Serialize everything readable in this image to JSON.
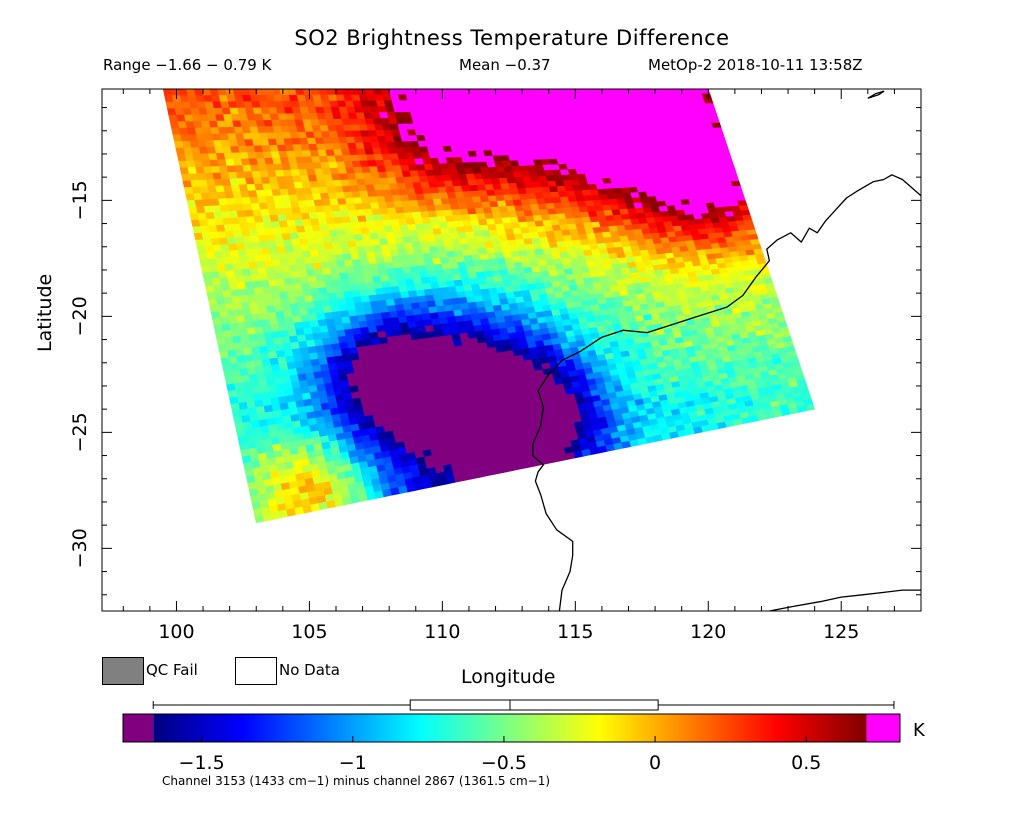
{
  "title": "SO2 Brightness Temperature Difference",
  "range_text": "Range −1.66 − 0.79 K",
  "mean_text": "Mean −0.37",
  "satellite_text": "MetOp-2 2018-10-11 13:58Z",
  "x_axis": {
    "label": "Longitude",
    "min": 97.2,
    "max": 128.0,
    "ticks": [
      100,
      105,
      110,
      115,
      120,
      125
    ]
  },
  "y_axis": {
    "label": "Latitude",
    "min": -32.7,
    "max": -10.2,
    "ticks": [
      -15,
      -20,
      -25,
      -30
    ]
  },
  "legend": {
    "qc_fail": "QC Fail",
    "no_data": "No Data",
    "qc_fail_color": "#808080",
    "no_data_color": "#ffffff"
  },
  "colorbar": {
    "unit": "K",
    "min": -1.76,
    "max": 0.81,
    "tick_values": [
      -1.5,
      -1,
      -0.5,
      0,
      0.5
    ],
    "tick_labels": [
      "−1.5",
      "−1",
      "−0.5",
      "0",
      "0.5"
    ],
    "underflow_color": "#800080",
    "overflow_color": "#ff00ff",
    "stops": [
      "#000080",
      "#0000ff",
      "#0080ff",
      "#00ffff",
      "#80ff80",
      "#ffff00",
      "#ff8000",
      "#ff0000",
      "#800000"
    ],
    "footnote": "Channel 3153 (1433 cm−1) minus channel 2867 (1361.5 cm−1)"
  },
  "boxplot": {
    "min": -1.66,
    "q1": -0.81,
    "median": -0.48,
    "q3": 0.01,
    "max": 0.79
  },
  "swath": {
    "corners": {
      "tl": [
        99.5,
        -10.2
      ],
      "tr": [
        120.0,
        -10.2
      ],
      "br": [
        124.0,
        -24.0
      ],
      "bl": [
        103.0,
        -28.9
      ]
    },
    "features": [
      {
        "lon": 110.8,
        "lat": -23.4,
        "value": -1.6,
        "radius": 4.6
      },
      {
        "lon": 113.0,
        "lat": -24.6,
        "value": -1.5,
        "radius": 2.4
      },
      {
        "lon": 108.0,
        "lat": -22.4,
        "value": -1.2,
        "radius": 2.6
      },
      {
        "lon": 116.5,
        "lat": -11.4,
        "value": 0.75,
        "radius": 3.8
      },
      {
        "lon": 110.5,
        "lat": -11.4,
        "value": 0.45,
        "radius": 3.2
      },
      {
        "lon": 105.0,
        "lat": -27.8,
        "value": 0.55,
        "radius": 2.6
      },
      {
        "lon": 120.0,
        "lat": -14.5,
        "value": 0.35,
        "radius": 2.6
      }
    ],
    "base_value": -0.42,
    "north_gradient": 0.065,
    "noise": 0.17
  },
  "coastline": [
    [
      [
        114.4,
        -32.7
      ],
      [
        114.5,
        -31.8
      ],
      [
        114.8,
        -31.0
      ],
      [
        114.9,
        -30.3
      ],
      [
        114.9,
        -29.7
      ],
      [
        114.3,
        -29.2
      ],
      [
        113.9,
        -28.5
      ],
      [
        113.7,
        -27.7
      ],
      [
        113.5,
        -27.1
      ],
      [
        113.6,
        -26.7
      ],
      [
        113.8,
        -26.4
      ],
      [
        113.4,
        -26.0
      ],
      [
        113.4,
        -25.5
      ],
      [
        113.7,
        -24.7
      ],
      [
        113.8,
        -23.9
      ],
      [
        113.6,
        -23.2
      ],
      [
        114.0,
        -22.5
      ],
      [
        114.5,
        -21.9
      ],
      [
        115.2,
        -21.5
      ],
      [
        116.0,
        -20.9
      ],
      [
        116.8,
        -20.6
      ],
      [
        117.7,
        -20.7
      ],
      [
        118.8,
        -20.3
      ],
      [
        119.6,
        -20.0
      ],
      [
        120.7,
        -19.6
      ],
      [
        121.3,
        -19.1
      ],
      [
        121.8,
        -18.3
      ],
      [
        122.3,
        -17.6
      ],
      [
        122.2,
        -17.1
      ],
      [
        122.6,
        -16.7
      ],
      [
        123.1,
        -16.4
      ],
      [
        123.5,
        -16.8
      ],
      [
        123.8,
        -16.2
      ],
      [
        124.1,
        -16.4
      ],
      [
        124.4,
        -15.9
      ],
      [
        124.8,
        -15.4
      ],
      [
        125.2,
        -14.9
      ],
      [
        125.6,
        -14.6
      ],
      [
        126.2,
        -14.2
      ],
      [
        126.6,
        -14.1
      ],
      [
        126.9,
        -13.9
      ],
      [
        127.3,
        -14.1
      ],
      [
        127.7,
        -14.5
      ],
      [
        128.0,
        -14.8
      ]
    ],
    [
      [
        122.3,
        -32.7
      ],
      [
        123.2,
        -32.5
      ],
      [
        124.2,
        -32.3
      ],
      [
        125.0,
        -32.1
      ],
      [
        125.8,
        -32.0
      ],
      [
        126.6,
        -31.9
      ],
      [
        127.3,
        -31.8
      ],
      [
        128.0,
        -31.8
      ]
    ],
    [
      [
        126.0,
        -10.6
      ],
      [
        126.3,
        -10.4
      ],
      [
        126.6,
        -10.3
      ],
      [
        126.4,
        -10.45
      ],
      [
        126.0,
        -10.6
      ]
    ]
  ]
}
